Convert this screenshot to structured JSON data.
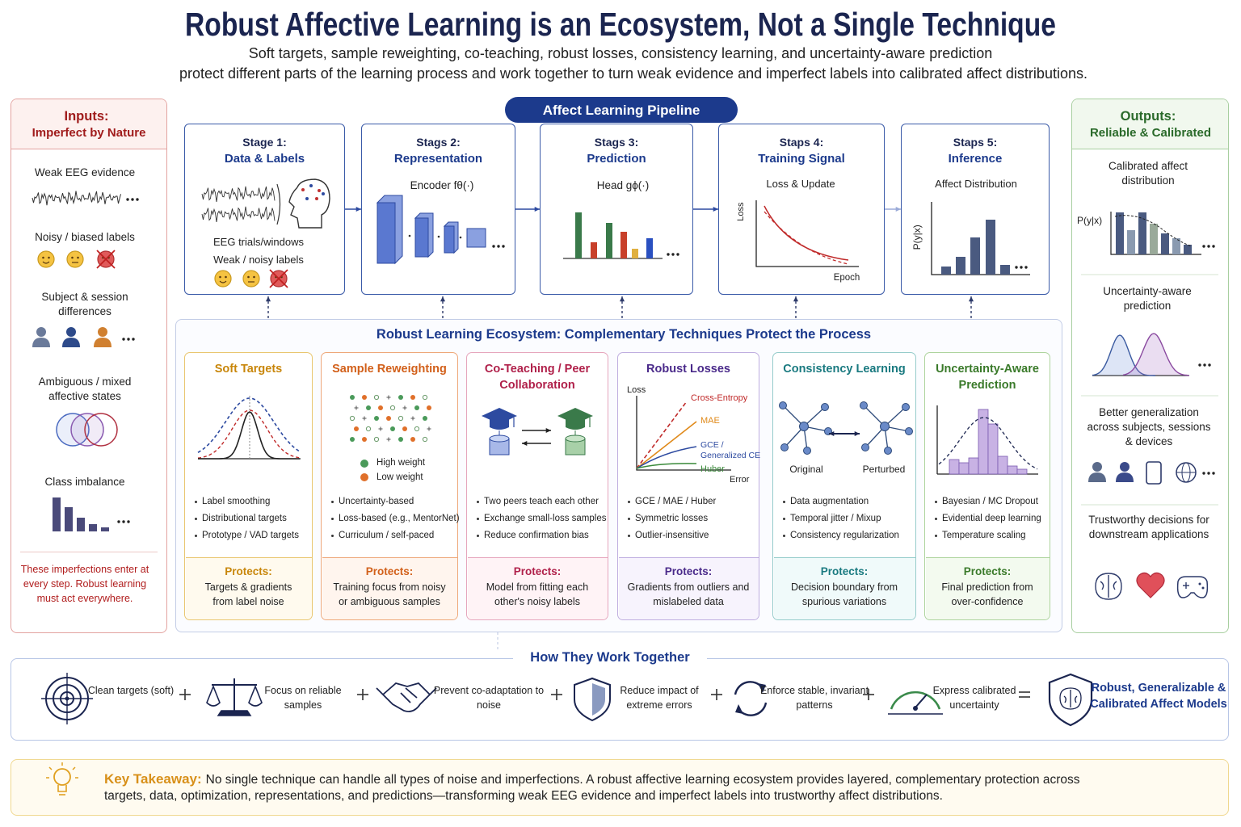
{
  "header": {
    "title": "Robust Affective Learning is an Ecosystem, Not a Single Technique",
    "subtitle": [
      "Soft targets, sample reweighting, co-teaching, robust losses, consistency learning, and uncertainty-aware prediction",
      "protect different parts of the learning process and work together to turn weak evidence and imperfect labels into calibrated affect distributions."
    ]
  },
  "inputs": {
    "title": [
      "Inputs:",
      "Imperfect by Nature"
    ],
    "items": [
      "Weak EEG evidence",
      "Noisy / biased labels",
      "Subject & session differences",
      "Ambiguous / mixed affective states",
      "Class imbalance"
    ],
    "note": "These imperfections enter at every step. Robust learning must act everywhere."
  },
  "pipeline": {
    "title": "Affect Learning Pipeline",
    "stages": [
      {
        "step": "Stage 1:",
        "name": "Data & Labels",
        "captions": [
          "EEG trials/windows",
          "Weak / noisy labels"
        ]
      },
      {
        "step": "Stags 2:",
        "name": "Representation",
        "captions": [
          "Encoder fθ(·)"
        ]
      },
      {
        "step": "Stags 3:",
        "name": "Prediction",
        "captions": [
          "Head gϕ(·)"
        ]
      },
      {
        "step": "Staps 4:",
        "name": "Training Signal",
        "captions": [
          "Loss & Update",
          "Loss",
          "Epoch"
        ]
      },
      {
        "step": "Staps 5:",
        "name": "Inference",
        "captions": [
          "Affect Distribution",
          "P(y|x)"
        ]
      }
    ]
  },
  "ecosystem": {
    "title": "Robust Learning Ecosystem: Complementary Techniques Protect the Process",
    "techniques": [
      {
        "name": "Soft Targets",
        "figure_labels": [],
        "bullets": [
          "Label smoothing",
          "Distributional targets",
          "Prototype / VAD targets"
        ],
        "protects_label": "Protects:",
        "protects": "Targets & gradients from label noise"
      },
      {
        "name": "Sample Reweighting",
        "figure_labels": [
          "High weight",
          "Low weight"
        ],
        "bullets": [
          "Uncertainty-based",
          "Loss-based (e.g., MentorNet)",
          "Curriculum / self-paced"
        ],
        "protects_label": "Protects:",
        "protects": "Training focus from noisy or ambiguous samples"
      },
      {
        "name": "Co-Teaching / Peer Collaboration",
        "figure_labels": [],
        "bullets": [
          "Two peers teach each other",
          "Exchange small-loss samples",
          "Reduce confirmation bias"
        ],
        "protects_label": "Protects:",
        "protects": "Model from fitting each other's noisy labels"
      },
      {
        "name": "Robust Losses",
        "figure_labels": [
          "Loss",
          "Cross-Entropy",
          "MAE",
          "GCE / Generalized CE",
          "Huber",
          "Error"
        ],
        "bullets": [
          "GCE / MAE / Huber",
          "Symmetric losses",
          "Outlier-insensitive"
        ],
        "protects_label": "Protects:",
        "protects": "Gradients from outliers and mislabeled data"
      },
      {
        "name": "Consistency Learning",
        "figure_labels": [
          "Original",
          "Perturbed"
        ],
        "bullets": [
          "Data augmentation",
          "Temporal jitter / Mixup",
          "Consistency regularization"
        ],
        "protects_label": "Protects:",
        "protects": "Decision boundary from spurious variations"
      },
      {
        "name": "Uncertainty-Aware Prediction",
        "figure_labels": [],
        "bullets": [
          "Bayesian / MC Dropout",
          "Evidential deep learning",
          "Temperature scaling"
        ],
        "protects_label": "Protects:",
        "protects": "Final prediction from over-confidence"
      }
    ]
  },
  "outputs": {
    "title": [
      "Outputs:",
      "Reliable & Calibrated"
    ],
    "items": [
      "Calibrated affect distribution",
      "Uncertainty-aware prediction",
      "Better generalization across subjects, sessions & devices",
      "Trustworthy decisions for downstream applications"
    ],
    "axis_label": "P(y|x)"
  },
  "together": {
    "title": "How They Work Together",
    "steps": [
      "Clean targets (soft)",
      "Focus on reliable samples",
      "Prevent co-adaptation to noise",
      "Reduce impact of extreme errors",
      "Enforce stable, invariant patterns",
      "Express calibrated uncertainty"
    ],
    "result": "Robust, Generalizable & Calibrated Affect Models"
  },
  "takeaway": {
    "label": "Key Takeaway:",
    "text": "No single technique can handle all types of noise and imperfections. A robust affective learning ecosystem provides layered, complementary protection across targets, data, optimization, representations, and predictions—transforming weak EEG evidence and imperfect labels into trustworthy affect distributions."
  }
}
